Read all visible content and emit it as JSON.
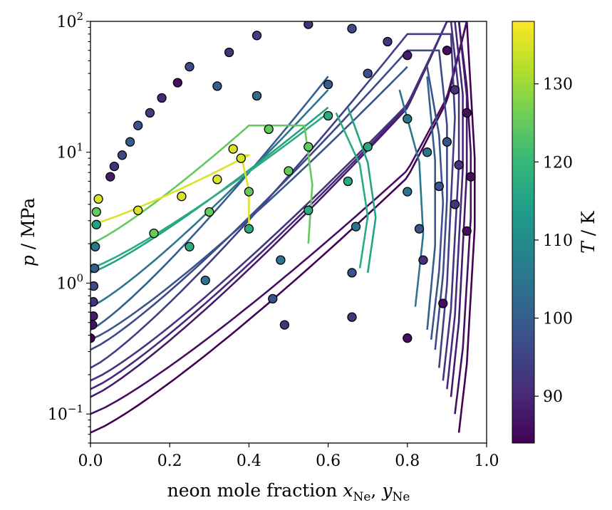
{
  "chart_data": {
    "type": "scatter",
    "xlabel_prefix": "neon mole fraction ",
    "xlabel_var1": "x",
    "xlabel_var2": "y",
    "xlabel_sub": "Ne",
    "ylabel_var": "p",
    "ylabel_unit": " / MPa",
    "colorbar_label_var": "T",
    "colorbar_label_unit": " / K",
    "xlim": [
      0.0,
      1.0
    ],
    "ylim": [
      0.06,
      100
    ],
    "y_scale": "log",
    "x_ticks": [
      "0.0",
      "0.2",
      "0.4",
      "0.6",
      "0.8",
      "1.0"
    ],
    "y_ticks": [
      {
        "base": "10",
        "exp": "2",
        "value": 100
      },
      {
        "base": "10",
        "exp": "1",
        "value": 10
      },
      {
        "base": "10",
        "exp": "0",
        "value": 1
      },
      {
        "base": "10",
        "exp": "−1",
        "value": 0.1
      }
    ],
    "colorbar_range": [
      84,
      138
    ],
    "colorbar_ticks": [
      "90",
      "100",
      "110",
      "120",
      "130"
    ],
    "colormap": [
      "#440154",
      "#482878",
      "#3e4989",
      "#31688e",
      "#26828e",
      "#1f9e89",
      "#35b779",
      "#6ece58",
      "#b5de2b",
      "#fde725"
    ],
    "series": [
      {
        "T": 84,
        "p_sat": 0.072,
        "x_bubble": [
          0.0,
          0.2,
          0.4,
          0.6,
          0.8,
          0.9,
          0.95
        ],
        "y_dew": [
          0.93,
          0.95,
          0.96,
          0.97,
          0.97,
          0.96,
          0.95
        ],
        "p_top": 100,
        "open_top": false
      },
      {
        "T": 86,
        "p_sat": 0.1,
        "x_bubble": [
          0.0,
          0.2,
          0.4,
          0.6,
          0.8,
          0.9,
          0.95
        ],
        "y_dew": [
          0.92,
          0.94,
          0.95,
          0.96,
          0.96,
          0.95,
          0.93
        ],
        "p_top": 100,
        "open_top": false
      },
      {
        "T": 88,
        "p_sat": 0.135,
        "x_bubble": [
          0.0,
          0.2,
          0.4,
          0.6,
          0.8,
          0.9
        ],
        "y_dew": [
          0.91,
          0.93,
          0.94,
          0.95,
          0.95,
          0.93
        ],
        "p_top": 100,
        "open_top": false
      },
      {
        "T": 90,
        "p_sat": 0.155,
        "x_bubble": [
          0.0,
          0.2,
          0.4,
          0.6,
          0.8,
          0.9
        ],
        "y_dew": [
          0.9,
          0.92,
          0.93,
          0.94,
          0.94,
          0.92
        ],
        "p_top": 100,
        "open_top": false
      },
      {
        "T": 92,
        "p_sat": 0.18,
        "x_bubble": [
          0.0,
          0.2,
          0.4,
          0.6,
          0.8,
          0.9
        ],
        "y_dew": [
          0.89,
          0.91,
          0.92,
          0.93,
          0.93,
          0.91
        ],
        "p_top": 100,
        "open_top": false
      },
      {
        "T": 94,
        "p_sat": 0.225,
        "x_bubble": [
          0.0,
          0.2,
          0.4,
          0.6,
          0.8
        ],
        "y_dew": [
          0.88,
          0.9,
          0.91,
          0.92,
          0.91
        ],
        "p_top": 80,
        "open_top": false
      },
      {
        "T": 96,
        "p_sat": 0.31,
        "x_bubble": [
          0.0,
          0.2,
          0.4,
          0.6,
          0.8
        ],
        "y_dew": [
          0.87,
          0.89,
          0.9,
          0.9,
          0.88
        ],
        "p_top": 60,
        "open_top": false
      },
      {
        "T": 98,
        "p_sat": 0.37,
        "x_bubble": [
          0.0,
          0.2,
          0.4,
          0.6,
          0.8
        ],
        "y_dew": [
          0.86,
          0.88,
          0.89,
          0.88,
          0.85
        ],
        "p_top": 45,
        "open_top": true
      },
      {
        "T": 100,
        "p_sat": 0.44,
        "x_bubble": [
          0.0,
          0.2,
          0.4,
          0.6
        ],
        "y_dew": [
          0.85,
          0.87,
          0.87,
          0.85
        ],
        "p_top": 38,
        "open_top": true
      },
      {
        "T": 105,
        "p_sat": 0.66,
        "x_bubble": [
          0.0,
          0.2,
          0.4,
          0.6
        ],
        "y_dew": [
          0.82,
          0.84,
          0.83,
          0.78
        ],
        "p_top": 30,
        "open_top": true
      },
      {
        "T": 115,
        "p_sat": 1.2,
        "x_bubble": [
          0.0,
          0.2,
          0.4,
          0.6
        ],
        "y_dew": [
          0.7,
          0.72,
          0.7,
          0.65
        ],
        "p_top": 22,
        "open_top": true
      },
      {
        "T": 117,
        "p_sat": 1.3,
        "x_bubble": [
          0.0,
          0.2,
          0.4,
          0.6
        ],
        "y_dew": [
          0.68,
          0.7,
          0.68,
          0.62
        ],
        "p_top": 20,
        "open_top": true
      },
      {
        "T": 125,
        "p_sat": 2.0,
        "x_bubble": [
          0.0,
          0.2,
          0.4
        ],
        "y_dew": [
          0.55,
          0.56,
          0.54
        ],
        "p_top": 16,
        "open_top": false
      },
      {
        "T": 135,
        "p_sat": 2.8,
        "x_bubble": [
          0.0,
          0.2,
          0.4
        ],
        "y_dew": [
          0.4,
          0.4,
          0.38
        ],
        "p_top": 9.5,
        "open_top": false
      }
    ],
    "points": [
      {
        "x": 0.0,
        "p": 0.38,
        "T": 84
      },
      {
        "x": 0.005,
        "p": 0.48,
        "T": 86
      },
      {
        "x": 0.007,
        "p": 0.56,
        "T": 88
      },
      {
        "x": 0.007,
        "p": 0.72,
        "T": 92
      },
      {
        "x": 0.008,
        "p": 0.95,
        "T": 96
      },
      {
        "x": 0.01,
        "p": 1.3,
        "T": 100
      },
      {
        "x": 0.012,
        "p": 1.9,
        "T": 105
      },
      {
        "x": 0.015,
        "p": 2.8,
        "T": 115
      },
      {
        "x": 0.015,
        "p": 3.5,
        "T": 125
      },
      {
        "x": 0.02,
        "p": 4.4,
        "T": 135
      },
      {
        "x": 0.05,
        "p": 6.5,
        "T": 88
      },
      {
        "x": 0.06,
        "p": 7.8,
        "T": 92
      },
      {
        "x": 0.08,
        "p": 9.5,
        "T": 96
      },
      {
        "x": 0.1,
        "p": 12,
        "T": 100
      },
      {
        "x": 0.12,
        "p": 16,
        "T": 98
      },
      {
        "x": 0.15,
        "p": 20,
        "T": 94
      },
      {
        "x": 0.18,
        "p": 26,
        "T": 90
      },
      {
        "x": 0.22,
        "p": 34,
        "T": 86
      },
      {
        "x": 0.12,
        "p": 3.6,
        "T": 135
      },
      {
        "x": 0.23,
        "p": 4.6,
        "T": 135
      },
      {
        "x": 0.32,
        "p": 6.2,
        "T": 135
      },
      {
        "x": 0.38,
        "p": 9.0,
        "T": 135
      },
      {
        "x": 0.36,
        "p": 10.6,
        "T": 135
      },
      {
        "x": 0.16,
        "p": 2.4,
        "T": 125
      },
      {
        "x": 0.3,
        "p": 3.5,
        "T": 125
      },
      {
        "x": 0.4,
        "p": 5.0,
        "T": 125
      },
      {
        "x": 0.5,
        "p": 7.2,
        "T": 125
      },
      {
        "x": 0.55,
        "p": 11,
        "T": 125
      },
      {
        "x": 0.45,
        "p": 15,
        "T": 125
      },
      {
        "x": 0.25,
        "p": 1.9,
        "T": 117
      },
      {
        "x": 0.4,
        "p": 2.6,
        "T": 117
      },
      {
        "x": 0.55,
        "p": 3.6,
        "T": 117
      },
      {
        "x": 0.65,
        "p": 6.0,
        "T": 117
      },
      {
        "x": 0.7,
        "p": 11,
        "T": 117
      },
      {
        "x": 0.6,
        "p": 19,
        "T": 117
      },
      {
        "x": 0.29,
        "p": 1.05,
        "T": 105
      },
      {
        "x": 0.48,
        "p": 1.5,
        "T": 105
      },
      {
        "x": 0.67,
        "p": 2.7,
        "T": 105
      },
      {
        "x": 0.8,
        "p": 5.0,
        "T": 105
      },
      {
        "x": 0.85,
        "p": 10,
        "T": 105
      },
      {
        "x": 0.8,
        "p": 18,
        "T": 105
      },
      {
        "x": 0.46,
        "p": 0.76,
        "T": 98
      },
      {
        "x": 0.66,
        "p": 1.2,
        "T": 98
      },
      {
        "x": 0.83,
        "p": 2.6,
        "T": 98
      },
      {
        "x": 0.88,
        "p": 5.5,
        "T": 98
      },
      {
        "x": 0.9,
        "p": 12,
        "T": 98
      },
      {
        "x": 0.49,
        "p": 0.48,
        "T": 92
      },
      {
        "x": 0.66,
        "p": 0.55,
        "T": 92
      },
      {
        "x": 0.84,
        "p": 1.5,
        "T": 92
      },
      {
        "x": 0.92,
        "p": 4.0,
        "T": 92
      },
      {
        "x": 0.93,
        "p": 8.0,
        "T": 92
      },
      {
        "x": 0.92,
        "p": 30,
        "T": 92
      },
      {
        "x": 0.8,
        "p": 0.38,
        "T": 86
      },
      {
        "x": 0.89,
        "p": 0.7,
        "T": 86
      },
      {
        "x": 0.95,
        "p": 2.5,
        "T": 86
      },
      {
        "x": 0.96,
        "p": 6.5,
        "T": 86
      },
      {
        "x": 0.95,
        "p": 20,
        "T": 86
      },
      {
        "x": 0.9,
        "p": 60,
        "T": 86
      },
      {
        "x": 0.35,
        "p": 58,
        "T": 92
      },
      {
        "x": 0.42,
        "p": 78,
        "T": 94
      },
      {
        "x": 0.55,
        "p": 95,
        "T": 92
      },
      {
        "x": 0.66,
        "p": 88,
        "T": 96
      },
      {
        "x": 0.75,
        "p": 70,
        "T": 92
      },
      {
        "x": 0.8,
        "p": 55,
        "T": 88
      },
      {
        "x": 0.25,
        "p": 45,
        "T": 96
      },
      {
        "x": 0.32,
        "p": 32,
        "T": 100
      },
      {
        "x": 0.42,
        "p": 27,
        "T": 103
      },
      {
        "x": 0.6,
        "p": 33,
        "T": 100
      },
      {
        "x": 0.7,
        "p": 40,
        "T": 98
      }
    ]
  }
}
